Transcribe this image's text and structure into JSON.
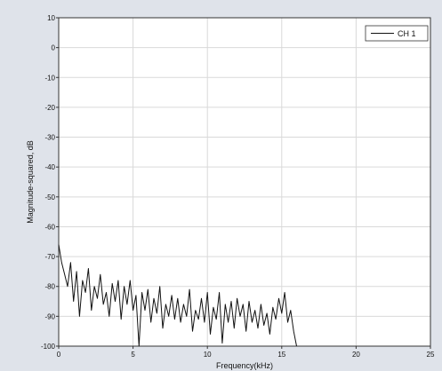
{
  "chart_data": {
    "type": "line",
    "xlabel": "Frequency(kHz)",
    "ylabel": "Magnitude-squared, dB",
    "xlim": [
      0,
      25
    ],
    "ylim": [
      -100,
      10
    ],
    "x_ticks": [
      "0",
      "5",
      "10",
      "15",
      "20",
      "25"
    ],
    "y_ticks": [
      "10",
      "0",
      "-10",
      "-20",
      "-30",
      "-40",
      "-50",
      "-60",
      "-70",
      "-80",
      "-90",
      "-100"
    ],
    "grid": true,
    "legend_position": "top-right",
    "series": [
      {
        "name": "CH 1",
        "color": "#111111",
        "x": [
          0.0,
          0.2,
          0.4,
          0.6,
          0.8,
          1.0,
          1.2,
          1.4,
          1.6,
          1.8,
          2.0,
          2.2,
          2.4,
          2.6,
          2.8,
          3.0,
          3.2,
          3.4,
          3.6,
          3.8,
          4.0,
          4.2,
          4.4,
          4.6,
          4.8,
          5.0,
          5.2,
          5.4,
          5.6,
          5.8,
          6.0,
          6.2,
          6.4,
          6.6,
          6.8,
          7.0,
          7.2,
          7.4,
          7.6,
          7.8,
          8.0,
          8.2,
          8.4,
          8.6,
          8.8,
          9.0,
          9.2,
          9.4,
          9.6,
          9.8,
          10.0,
          10.2,
          10.4,
          10.6,
          10.8,
          11.0,
          11.2,
          11.4,
          11.6,
          11.8,
          12.0,
          12.2,
          12.4,
          12.6,
          12.8,
          13.0,
          13.2,
          13.4,
          13.6,
          13.8,
          14.0,
          14.2,
          14.4,
          14.6,
          14.8,
          15.0,
          15.2,
          15.4,
          15.6,
          15.8,
          16.0
        ],
        "y": [
          -66,
          -72,
          -76,
          -80,
          -72,
          -85,
          -75,
          -90,
          -78,
          -82,
          -74,
          -88,
          -80,
          -84,
          -76,
          -86,
          -82,
          -90,
          -79,
          -85,
          -78,
          -91,
          -80,
          -86,
          -78,
          -88,
          -83,
          -100,
          -82,
          -88,
          -81,
          -92,
          -84,
          -89,
          -80,
          -94,
          -86,
          -90,
          -83,
          -91,
          -84,
          -92,
          -86,
          -90,
          -81,
          -95,
          -88,
          -91,
          -84,
          -92,
          -82,
          -96,
          -87,
          -91,
          -82,
          -99,
          -86,
          -92,
          -85,
          -94,
          -84,
          -90,
          -86,
          -95,
          -85,
          -92,
          -88,
          -94,
          -86,
          -93,
          -89,
          -96,
          -87,
          -91,
          -84,
          -89,
          -82,
          -92,
          -88,
          -95,
          -100
        ]
      }
    ]
  }
}
